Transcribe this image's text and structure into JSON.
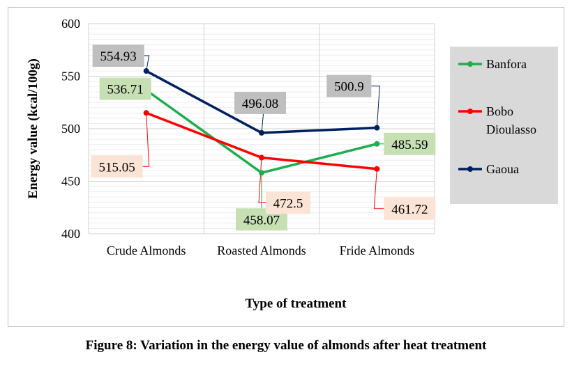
{
  "caption": "Figure 8: Variation in the energy value of almonds after heat treatment",
  "chart_data": {
    "type": "line",
    "categories": [
      "Crude Almonds",
      "Roasted Almonds",
      "Fride Almonds"
    ],
    "xlabel": "Type of treatment",
    "ylabel": "Energy value (kcal/100g)",
    "ylim": [
      400,
      600
    ],
    "yticks": [
      400,
      450,
      500,
      550,
      600
    ],
    "grid": true,
    "legend_position": "right",
    "series": [
      {
        "name": "Banfora",
        "values": [
          536.71,
          458.07,
          485.59
        ],
        "labels": [
          "536.71",
          "458.07",
          "485.59"
        ],
        "color": "#1fad4f",
        "label_bg": "#c6e0b4"
      },
      {
        "name": "Bobo Dioulasso",
        "name_lines": [
          "Bobo",
          "Dioulasso"
        ],
        "values": [
          515.05,
          472.5,
          461.72
        ],
        "labels": [
          "515.05",
          "472.5",
          "461.72"
        ],
        "color": "#ff0000",
        "label_bg": "#fbe4d5"
      },
      {
        "name": "Gaoua",
        "values": [
          554.93,
          496.08,
          500.9
        ],
        "labels": [
          "554.93",
          "496.08",
          "500.9"
        ],
        "color": "#002060",
        "label_bg": "#bfbfbf"
      }
    ]
  }
}
